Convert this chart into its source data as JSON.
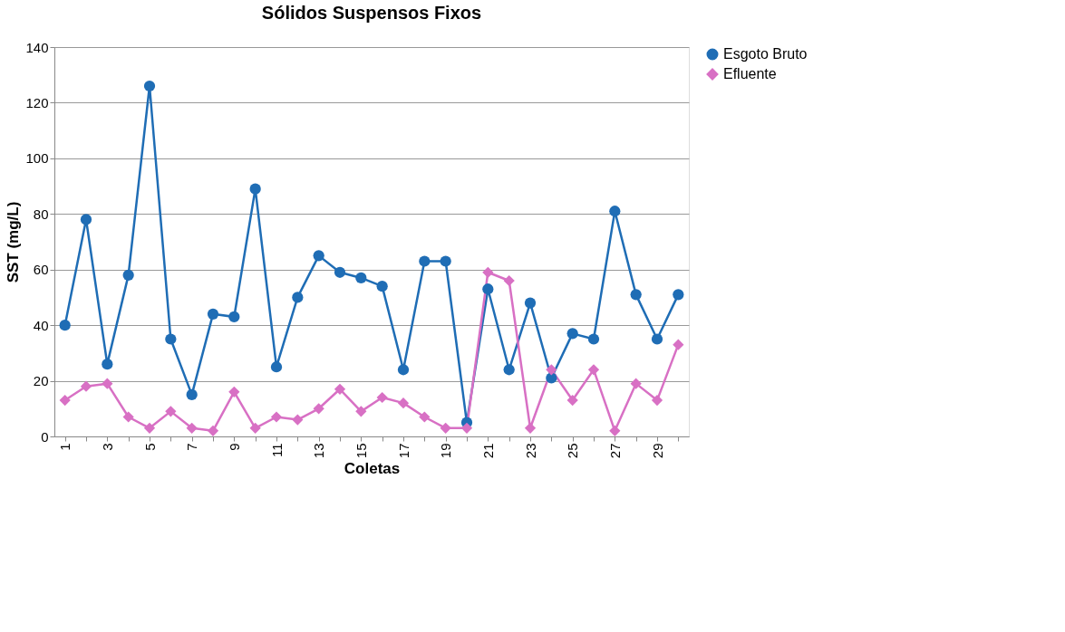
{
  "chart_data": {
    "type": "line",
    "title": "Sólidos Suspensos Fixos",
    "xlabel": "Coletas",
    "ylabel": "SST (mg/L)",
    "categories": [
      "1",
      null,
      "3",
      null,
      "5",
      null,
      "7",
      null,
      "9",
      null,
      "11",
      null,
      "13",
      null,
      "15",
      null,
      "17",
      null,
      "19",
      null,
      "21",
      null,
      "23",
      null,
      "25",
      null,
      "27",
      null,
      "29",
      null
    ],
    "series": [
      {
        "name": "Esgoto Bruto",
        "color": "#1f6db5",
        "marker": "circle",
        "line_style": "solid",
        "values": [
          40,
          78,
          26,
          58,
          126,
          35,
          15,
          44,
          43,
          89,
          25,
          50,
          65,
          59,
          57,
          54,
          24,
          63,
          63,
          5,
          53,
          24,
          48,
          21,
          37,
          35,
          81,
          51,
          35,
          51
        ]
      },
      {
        "name": "Efluente",
        "color": "#d870c4",
        "marker": "diamond",
        "line_style": "solid",
        "values": [
          13,
          18,
          19,
          7,
          3,
          9,
          3,
          2,
          16,
          3,
          7,
          6,
          10,
          17,
          9,
          14,
          12,
          7,
          3,
          3,
          59,
          56,
          3,
          24,
          13,
          24,
          2,
          19,
          13,
          33
        ]
      }
    ],
    "ylim": [
      0,
      140
    ],
    "yticks": [
      0,
      20,
      40,
      60,
      80,
      100,
      120,
      140
    ],
    "grid": "y",
    "legend": "right"
  }
}
